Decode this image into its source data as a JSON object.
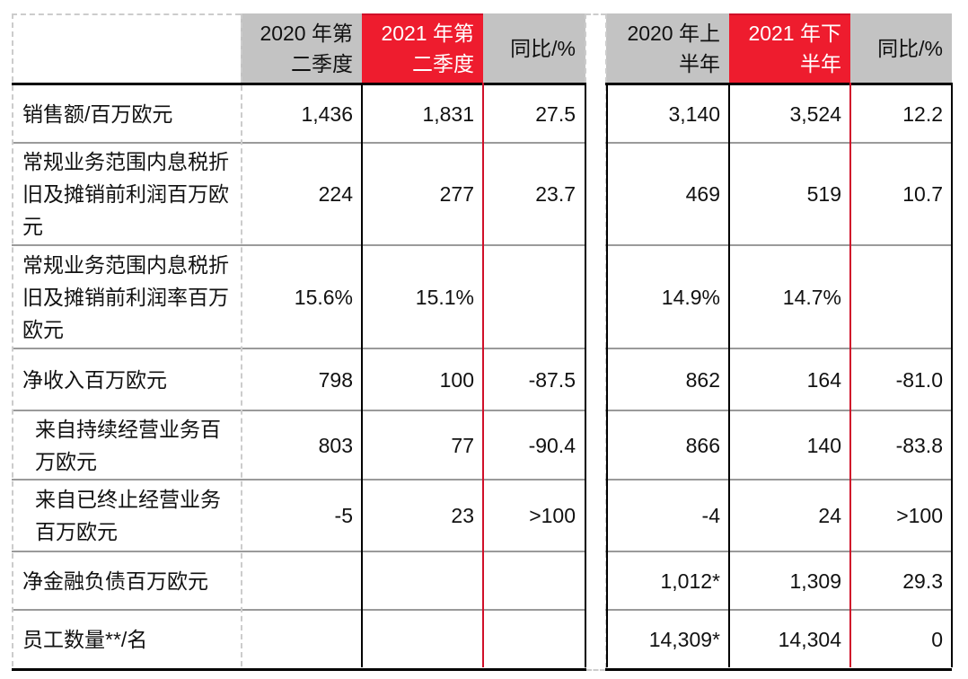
{
  "headers": {
    "q2020": "2020 年第二季度",
    "q2021": "2021 年第二季度",
    "q_yoy": "同比/%",
    "h2020": "2020 年上半年",
    "h2021": "2021 年下半年",
    "h_yoy": "同比/%"
  },
  "rows": [
    {
      "label": "销售额/百万欧元",
      "q2020": "1,436",
      "q2021": "1,831",
      "q_yoy": "27.5",
      "h2020": "3,140",
      "h2021": "3,524",
      "h_yoy": "12.2"
    },
    {
      "label": "常规业务范围内息税折旧及摊销前利润百万欧元",
      "q2020": "224",
      "q2021": "277",
      "q_yoy": "23.7",
      "h2020": "469",
      "h2021": "519",
      "h_yoy": "10.7"
    },
    {
      "label": "常规业务范围内息税折旧及摊销前利润率百万欧元",
      "q2020": "15.6%",
      "q2021": "15.1%",
      "q_yoy": "",
      "h2020": "14.9%",
      "h2021": "14.7%",
      "h_yoy": ""
    },
    {
      "label": "净收入百万欧元",
      "q2020": "798",
      "q2021": "100",
      "q_yoy": "-87.5",
      "h2020": "862",
      "h2021": "164",
      "h_yoy": "-81.0"
    },
    {
      "label": "来自持续经营业务百万欧元",
      "q2020": "803",
      "q2021": "77",
      "q_yoy": "-90.4",
      "h2020": "866",
      "h2021": "140",
      "h_yoy": "-83.8"
    },
    {
      "label": "来自已终止经营业务百万欧元",
      "q2020": "-5",
      "q2021": "23",
      "q_yoy": ">100",
      "h2020": "-4",
      "h2021": "24",
      "h_yoy": ">100"
    },
    {
      "label": "净金融负债百万欧元",
      "q2020": "",
      "q2021": "",
      "q_yoy": "",
      "h2020": "1,012*",
      "h2021": "1,309",
      "h_yoy": "29.3"
    },
    {
      "label": "员工数量**/名",
      "q2020": "",
      "q2021": "",
      "q_yoy": "",
      "h2020": "14,309*",
      "h2021": "14,304",
      "h_yoy": "0"
    }
  ],
  "colors": {
    "highlight": "#ee1c2e",
    "header_gray": "#c3c3c3"
  }
}
